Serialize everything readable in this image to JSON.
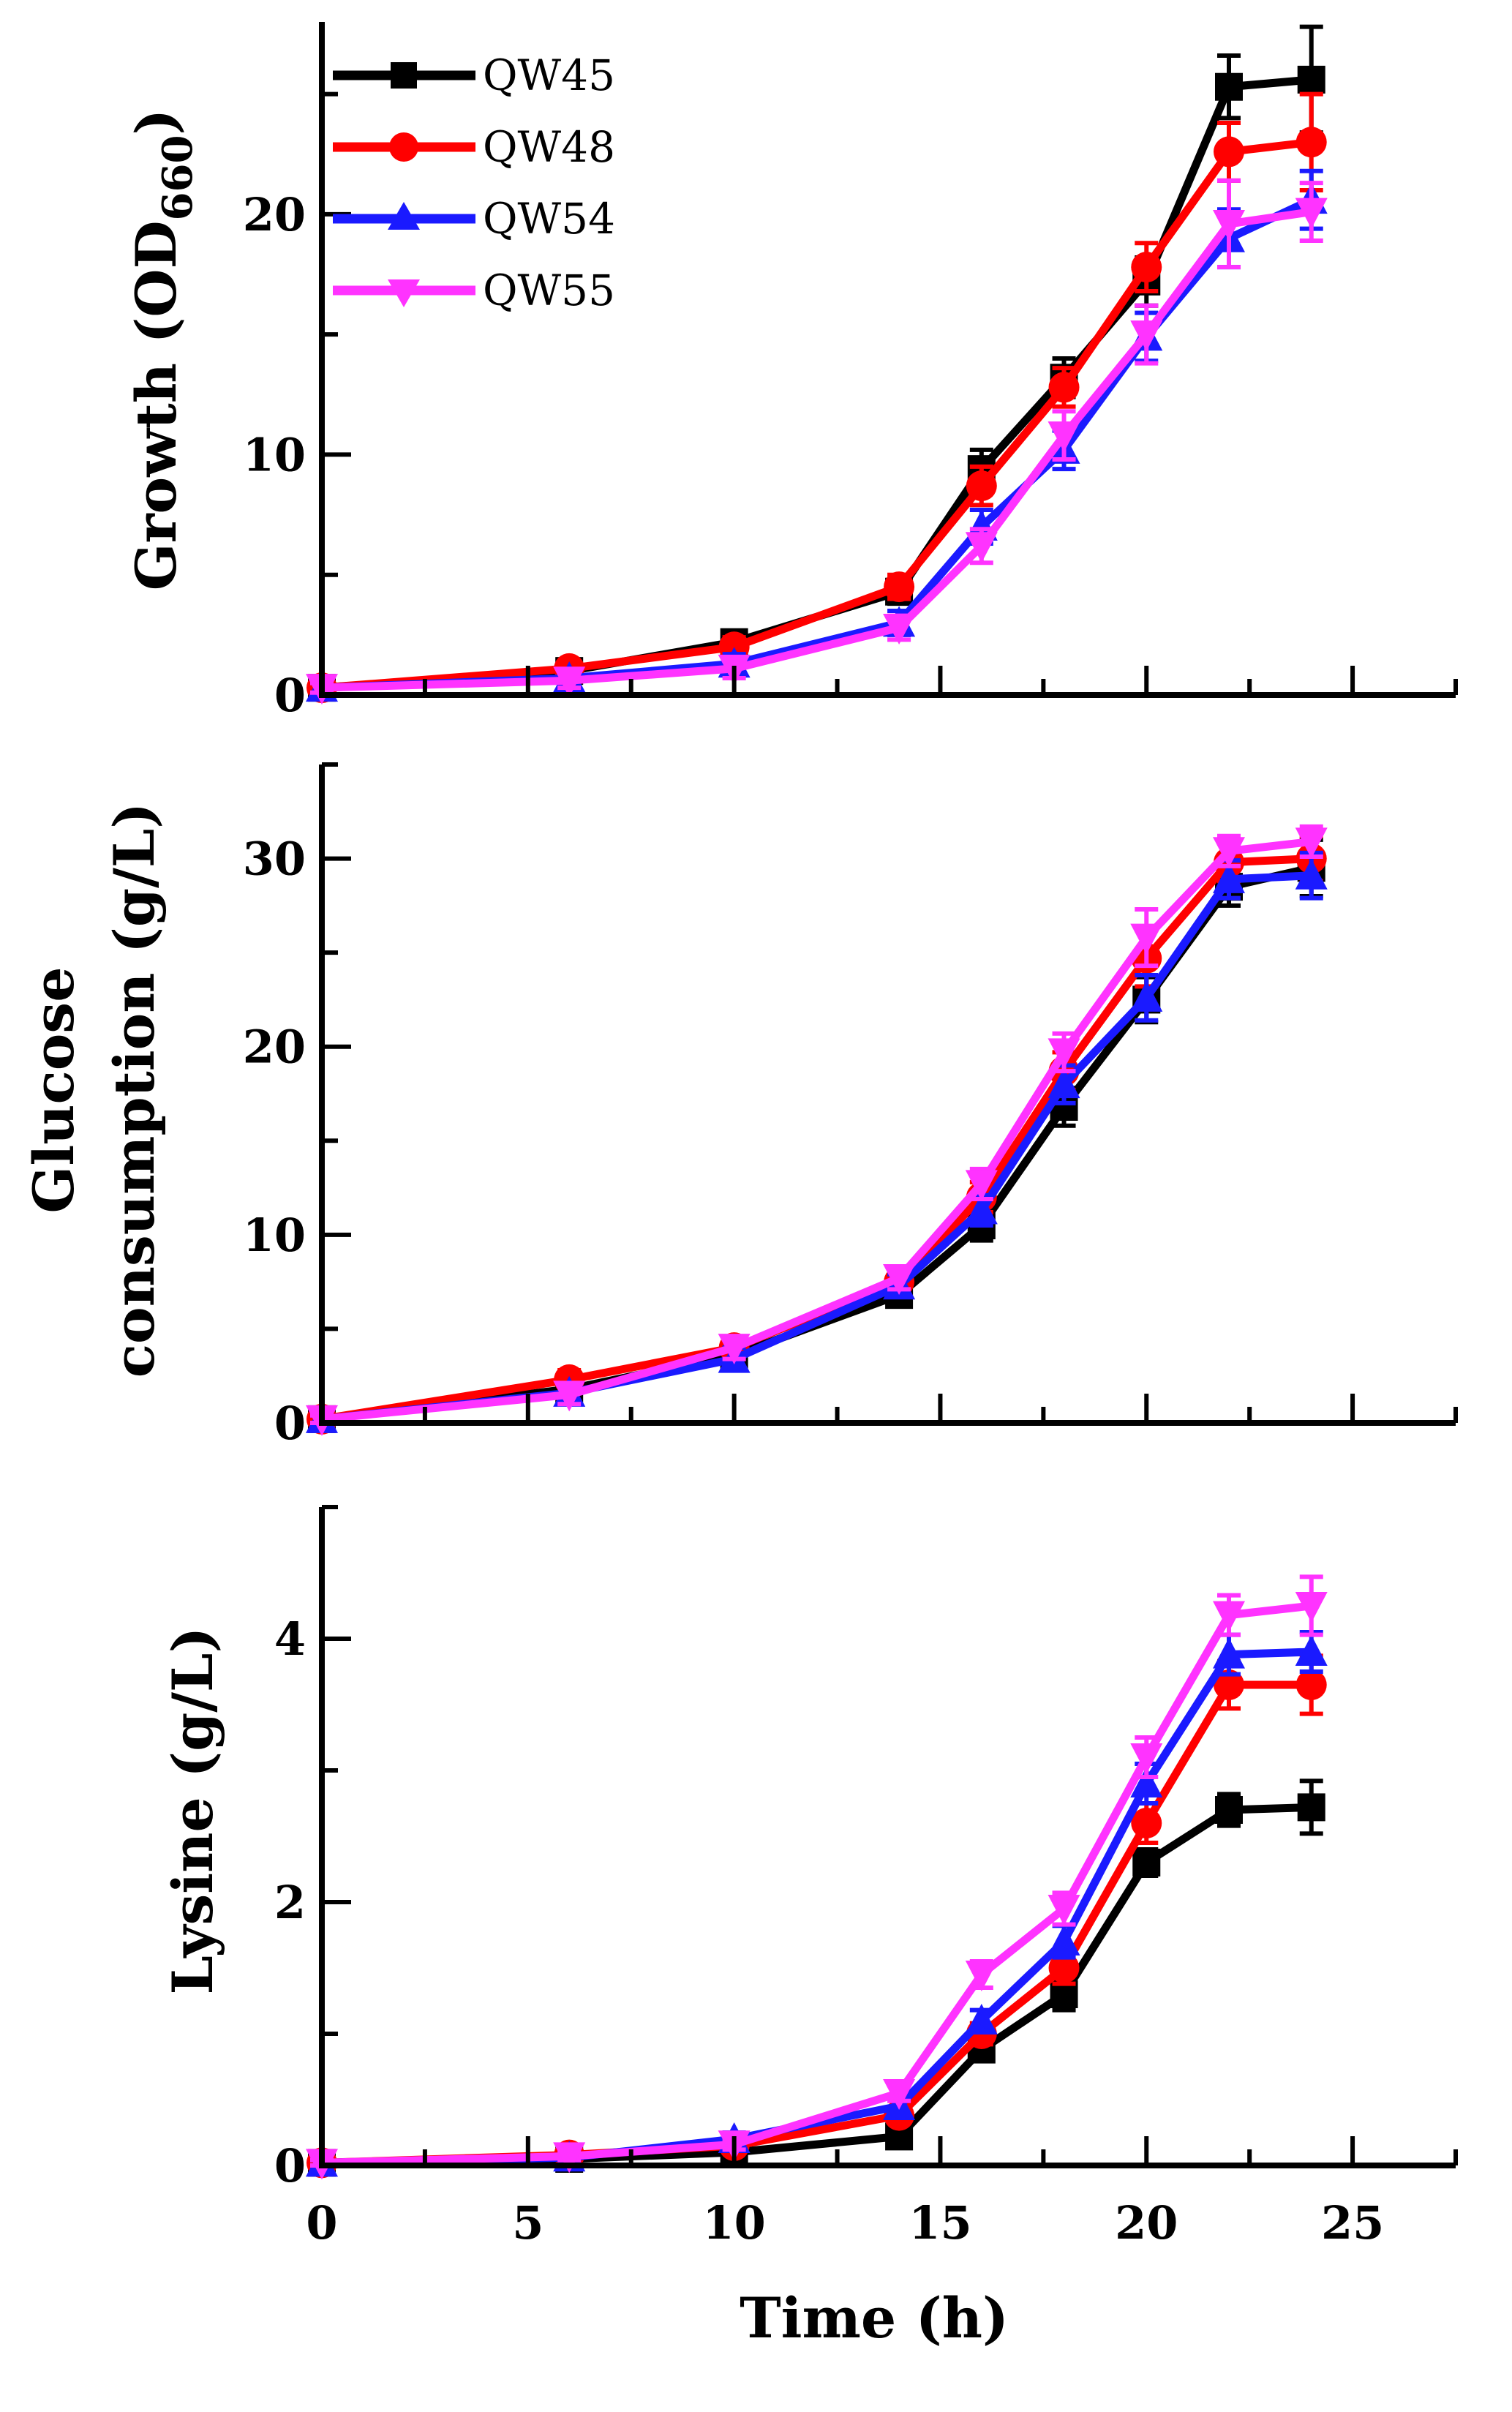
{
  "figure": {
    "x_axis_title": "Time (h)",
    "series_names": [
      "QW45",
      "QW48",
      "QW54",
      "QW55"
    ],
    "series_colors": [
      "#000000",
      "#ff0000",
      "#1a1aff",
      "#ff33ff"
    ],
    "series_markers": [
      "square",
      "circle",
      "triangle-up",
      "triangle-down"
    ]
  },
  "chart_data": [
    {
      "type": "line",
      "panel": "growth",
      "ylabel_main": "Growth (OD",
      "ylabel_sub": "660",
      "ylabel_end": ")",
      "xlim": [
        0,
        27.5
      ],
      "ylim": [
        0,
        28
      ],
      "xticks": [
        0,
        5,
        10,
        15,
        20,
        25
      ],
      "yticks": [
        0,
        10,
        20
      ],
      "yticks_labels": [
        "0",
        "10",
        "20"
      ],
      "x": [
        0,
        6,
        10,
        14,
        16,
        18,
        20,
        22,
        24
      ],
      "series": [
        {
          "name": "QW45",
          "values": [
            0.3,
            1.0,
            2.2,
            4.3,
            9.4,
            13.2,
            17.2,
            25.3,
            25.6
          ],
          "err": [
            0.2,
            0.3,
            0.4,
            0.5,
            0.8,
            0.8,
            1.0,
            1.3,
            2.2
          ]
        },
        {
          "name": "QW48",
          "values": [
            0.3,
            1.1,
            2.0,
            4.5,
            8.7,
            12.8,
            17.8,
            22.6,
            23.0
          ],
          "err": [
            0.2,
            0.3,
            0.4,
            0.5,
            0.8,
            0.8,
            1.0,
            1.2,
            2.0
          ]
        },
        {
          "name": "QW54",
          "values": [
            0.3,
            0.7,
            1.3,
            3.0,
            7.0,
            10.2,
            14.9,
            19.0,
            20.6
          ],
          "err": [
            0.2,
            0.3,
            0.4,
            0.5,
            0.7,
            0.8,
            1.0,
            1.2,
            1.2
          ]
        },
        {
          "name": "QW55",
          "values": [
            0.3,
            0.6,
            1.1,
            2.8,
            6.2,
            10.8,
            15.0,
            19.6,
            20.1
          ],
          "err": [
            0.2,
            0.3,
            0.4,
            0.5,
            0.7,
            1.0,
            1.2,
            1.8,
            1.2
          ]
        }
      ]
    },
    {
      "type": "line",
      "panel": "glucose",
      "ylabel_line1": "Glucose",
      "ylabel_line2": "consumption (g/L)",
      "xlim": [
        0,
        27.5
      ],
      "ylim": [
        0,
        35
      ],
      "xticks": [
        0,
        5,
        10,
        15,
        20,
        25
      ],
      "yticks": [
        0,
        10,
        20,
        30
      ],
      "yticks_labels": [
        "0",
        "10",
        "20",
        "30"
      ],
      "x": [
        0,
        6,
        10,
        14,
        16,
        18,
        20,
        22,
        24
      ],
      "series": [
        {
          "name": "QW45",
          "values": [
            0.2,
            1.8,
            3.6,
            6.8,
            10.5,
            16.8,
            22.5,
            28.5,
            29.5
          ],
          "err": [
            0.2,
            0.5,
            0.6,
            0.6,
            0.8,
            1.0,
            1.2,
            1.0,
            1.5
          ]
        },
        {
          "name": "QW48",
          "values": [
            0.2,
            2.3,
            4.0,
            7.5,
            12.0,
            18.7,
            24.7,
            29.8,
            30.0
          ],
          "err": [
            0.2,
            0.5,
            0.6,
            0.6,
            0.8,
            1.0,
            1.5,
            1.0,
            1.2
          ]
        },
        {
          "name": "QW54",
          "values": [
            0.2,
            1.6,
            3.4,
            7.3,
            11.3,
            18.0,
            22.6,
            28.9,
            29.1
          ],
          "err": [
            0.2,
            0.5,
            0.6,
            0.6,
            0.8,
            1.0,
            1.2,
            1.0,
            1.2
          ]
        },
        {
          "name": "QW55",
          "values": [
            0.2,
            1.5,
            4.0,
            7.7,
            12.7,
            19.7,
            25.8,
            30.4,
            30.9
          ],
          "err": [
            0.2,
            0.5,
            0.6,
            0.6,
            0.8,
            1.0,
            1.5,
            0.8,
            0.8
          ]
        }
      ]
    },
    {
      "type": "line",
      "panel": "lysine",
      "ylabel_main": "Lysine (g/L)",
      "xlabel": "Time (h)",
      "xlim": [
        0,
        27.5
      ],
      "ylim": [
        0,
        5
      ],
      "xticks": [
        0,
        5,
        10,
        15,
        20,
        25
      ],
      "xticks_labels": [
        "0",
        "5",
        "10",
        "15",
        "20",
        "25"
      ],
      "yticks": [
        0,
        2,
        4
      ],
      "yticks_labels": [
        "0",
        "2",
        "4"
      ],
      "x": [
        0,
        6,
        10,
        14,
        16,
        18,
        20,
        22,
        24
      ],
      "series": [
        {
          "name": "QW45",
          "values": [
            0.02,
            0.05,
            0.1,
            0.22,
            0.88,
            1.3,
            2.3,
            2.7,
            2.72
          ],
          "err": [
            0.02,
            0.03,
            0.04,
            0.05,
            0.08,
            0.12,
            0.1,
            0.12,
            0.2
          ]
        },
        {
          "name": "QW48",
          "values": [
            0.02,
            0.08,
            0.15,
            0.38,
            1.0,
            1.5,
            2.6,
            3.65,
            3.65
          ],
          "err": [
            0.02,
            0.03,
            0.04,
            0.05,
            0.08,
            0.12,
            0.15,
            0.18,
            0.22
          ]
        },
        {
          "name": "QW54",
          "values": [
            0.02,
            0.06,
            0.2,
            0.45,
            1.1,
            1.7,
            2.9,
            3.88,
            3.9
          ],
          "err": [
            0.02,
            0.03,
            0.05,
            0.06,
            0.08,
            0.12,
            0.15,
            0.15,
            0.15
          ]
        },
        {
          "name": "QW55",
          "values": [
            0.02,
            0.07,
            0.16,
            0.55,
            1.45,
            1.95,
            3.1,
            4.18,
            4.25
          ],
          "err": [
            0.02,
            0.03,
            0.04,
            0.06,
            0.1,
            0.12,
            0.15,
            0.15,
            0.22
          ]
        }
      ]
    }
  ]
}
